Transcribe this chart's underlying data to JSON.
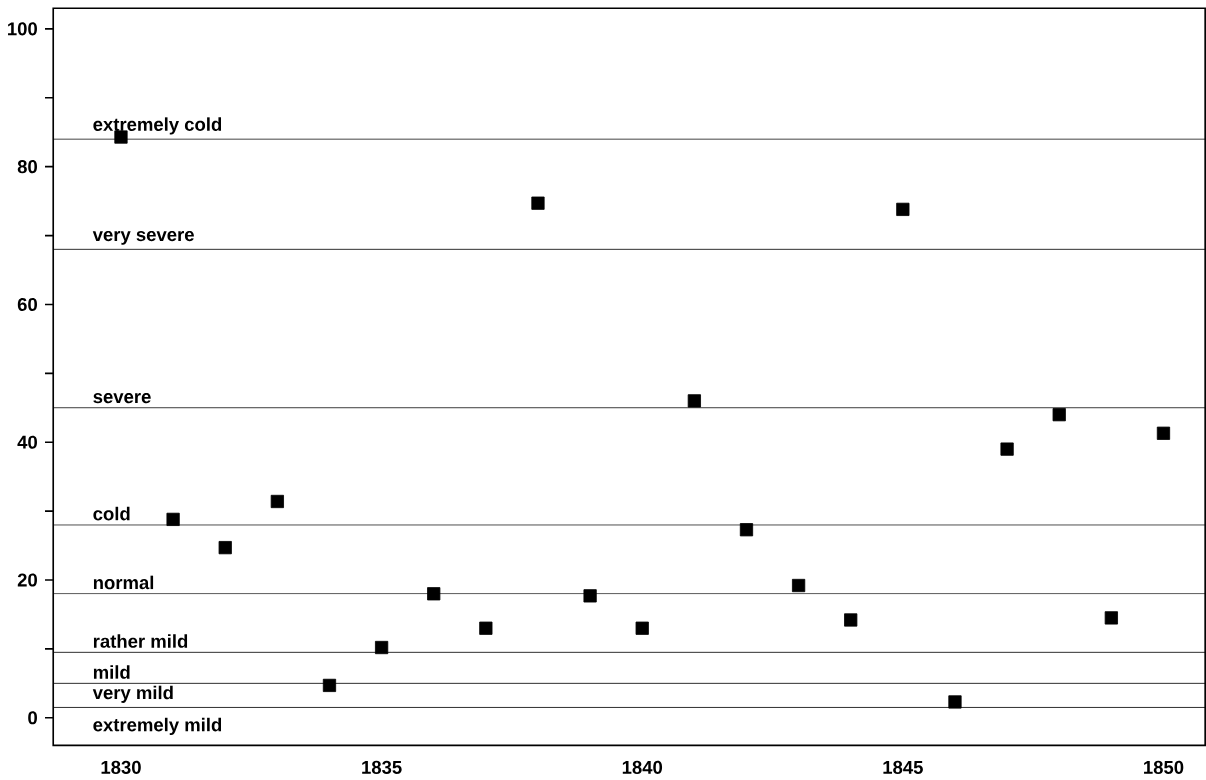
{
  "chart_data": {
    "type": "scatter",
    "x": [
      1830,
      1831,
      1832,
      1833,
      1834,
      1835,
      1836,
      1837,
      1838,
      1839,
      1840,
      1841,
      1842,
      1843,
      1844,
      1845,
      1846,
      1847,
      1848,
      1849,
      1850
    ],
    "values": [
      84.3,
      28.8,
      24.7,
      31.4,
      4.7,
      10.2,
      18,
      13,
      74.7,
      17.7,
      13,
      46,
      27.3,
      19.2,
      14.2,
      73.8,
      2.3,
      39,
      44,
      14.5,
      41.3
    ],
    "color": "#000000",
    "marker": "square",
    "xlim": [
      1828.7,
      1850.8
    ],
    "xticks": [
      1830,
      1835,
      1840,
      1845,
      1850
    ],
    "ylim": [
      -4,
      103
    ],
    "yticks": [
      0,
      {
        "value": 10,
        "label": null
      },
      20,
      {
        "value": 30,
        "label": null
      },
      40,
      {
        "value": 50,
        "label": null
      },
      60,
      {
        "value": 70,
        "label": null
      },
      80,
      {
        "value": 90,
        "label": null
      },
      100
    ],
    "ref_lines": [
      {
        "axis": "y",
        "value": 84,
        "label": "extremely cold"
      },
      {
        "axis": "y",
        "value": 68,
        "label": "very severe"
      },
      {
        "axis": "y",
        "value": 45,
        "label": "severe"
      },
      {
        "axis": "y",
        "value": 28,
        "label": "cold"
      },
      {
        "axis": "y",
        "value": 18,
        "label": "normal"
      },
      {
        "axis": "y",
        "value": 9.5,
        "label": "rather mild"
      },
      {
        "axis": "y",
        "value": 5,
        "label": "mild"
      },
      {
        "axis": "y",
        "value": 1.5,
        "label": "very mild"
      }
    ],
    "annotations": [
      "extremely mild"
    ],
    "grid": false
  }
}
